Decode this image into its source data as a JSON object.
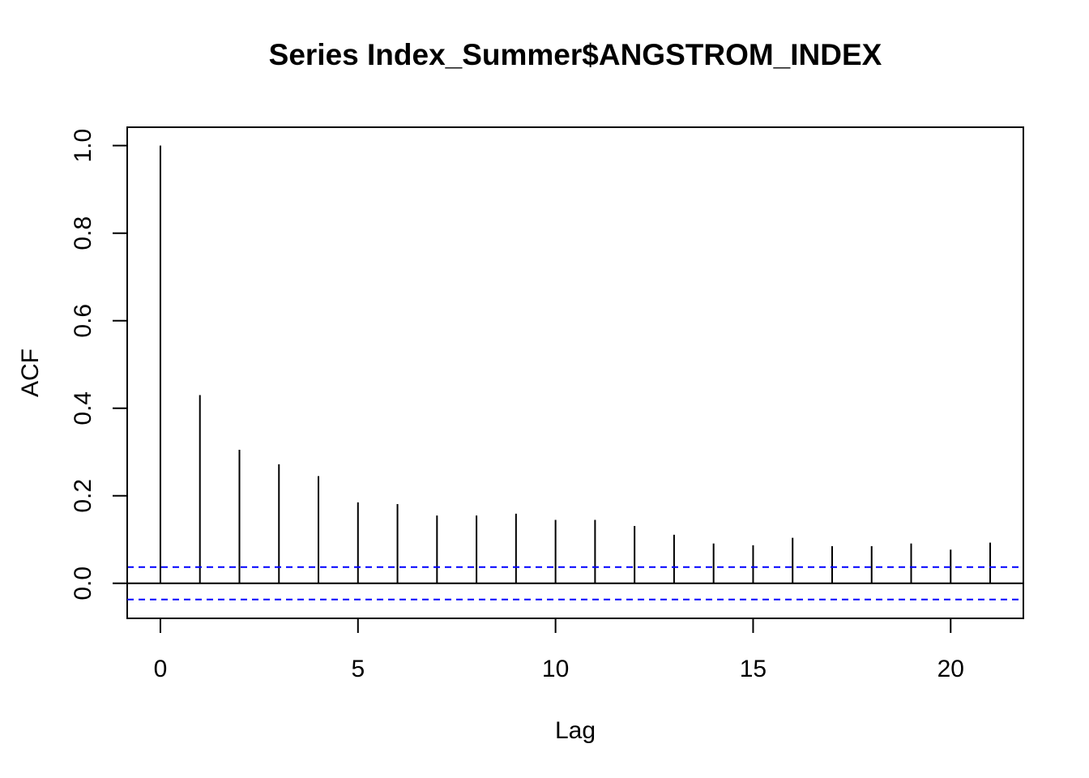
{
  "chart_data": {
    "type": "bar",
    "title": "Series  Index_Summer$ANGSTROM_INDEX",
    "xlabel": "Lag",
    "ylabel": "ACF",
    "xlim": [
      -0.84,
      21.84
    ],
    "ylim": [
      -0.08,
      1.042
    ],
    "x_ticks": [
      0,
      5,
      10,
      15,
      20
    ],
    "x_tick_labels": [
      "0",
      "5",
      "10",
      "15",
      "20"
    ],
    "y_ticks": [
      0.0,
      0.2,
      0.4,
      0.6,
      0.8,
      1.0
    ],
    "y_tick_labels": [
      "0.0",
      "0.2",
      "0.4",
      "0.6",
      "0.8",
      "1.0"
    ],
    "series": [
      {
        "x": [
          0,
          1,
          2,
          3,
          4,
          5,
          6,
          7,
          8,
          9,
          10,
          11,
          12,
          13,
          14,
          15,
          16,
          17,
          18,
          19,
          20,
          21
        ],
        "values": [
          1.0,
          0.43,
          0.305,
          0.272,
          0.245,
          0.185,
          0.181,
          0.155,
          0.155,
          0.159,
          0.145,
          0.145,
          0.131,
          0.111,
          0.091,
          0.087,
          0.104,
          0.085,
          0.085,
          0.091,
          0.077,
          0.093
        ]
      }
    ],
    "confidence_bounds": [
      0.037,
      -0.037
    ],
    "colors": {
      "bars": "#000000",
      "zero_line": "#000000",
      "confidence_lines": "#0000ff"
    },
    "grid": false,
    "legend": "none"
  }
}
